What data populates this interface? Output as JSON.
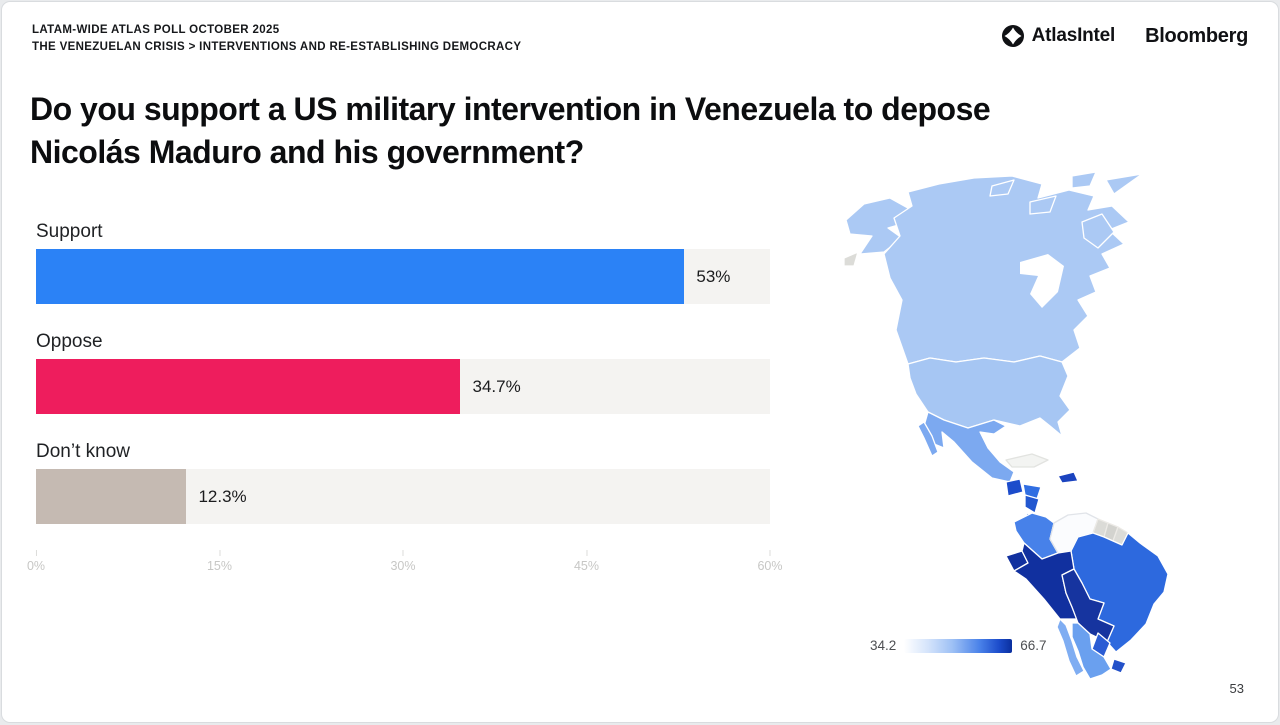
{
  "page": {
    "eyebrow_line1": "LATAM-WIDE ATLAS POLL OCTOBER 2025",
    "eyebrow_line2": "THE VENEZUELAN CRISIS > INTERVENTIONS AND RE-ESTABLISHING DEMOCRACY",
    "title_line1": "Do you support a US military intervention in Venezuela to depose",
    "title_line2": "Nicolás Maduro and his government?",
    "page_number": "53"
  },
  "brand": {
    "atlasintel_label": "AtlasIntel",
    "bloomberg_label": "Bloomberg"
  },
  "chart_data": {
    "type": "bar",
    "orientation": "horizontal",
    "title": "Do you support a US military intervention in Venezuela to depose Nicolás Maduro and his government?",
    "categories": [
      "Support",
      "Oppose",
      "Don’t know"
    ],
    "values": [
      53,
      34.7,
      12.3
    ],
    "value_labels": [
      "53%",
      "34.7%",
      "12.3%"
    ],
    "bar_colors": [
      "#2b82f6",
      "#ee1d5d",
      "#c5bab2"
    ],
    "track_color": "#f4f3f1",
    "xlim": [
      0,
      60
    ],
    "xticks": [
      "0%",
      "15%",
      "30%",
      "45%",
      "60%"
    ],
    "grid": false,
    "legend": "none"
  },
  "map": {
    "type": "choropleth",
    "region": "Americas",
    "legend_min": "34.2",
    "legend_max": "66.7",
    "color_low": "#ffffff",
    "color_high": "#0a2f9e"
  }
}
